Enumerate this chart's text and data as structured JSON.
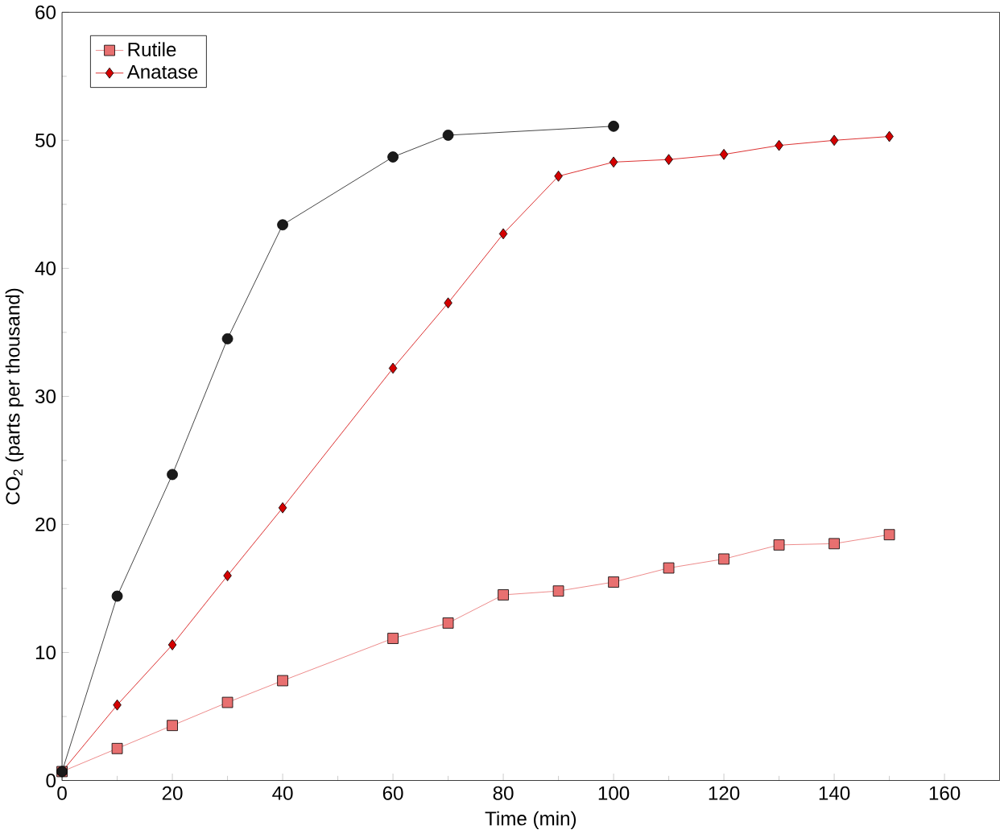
{
  "chart_data": {
    "type": "line",
    "xlabel": "Time (min)",
    "ylabel": "CO$_{2}$ (parts per thousand)",
    "xlim": [
      0,
      170
    ],
    "ylim": [
      0,
      60
    ],
    "xticks": [
      0,
      20,
      40,
      60,
      80,
      100,
      120,
      140,
      160
    ],
    "yticks": [
      0,
      10,
      20,
      30,
      40,
      50,
      60
    ],
    "legend": "top left",
    "grid": false,
    "series": [
      {
        "name": "Rutile",
        "color": "#e87070",
        "marker": "square",
        "x": [
          0,
          10,
          20,
          30,
          40,
          60,
          70,
          80,
          90,
          100,
          110,
          120,
          130,
          140,
          150
        ],
        "values": [
          0.7,
          2.5,
          4.3,
          6.1,
          7.8,
          11.1,
          12.3,
          14.5,
          14.8,
          15.5,
          16.6,
          17.3,
          18.4,
          18.5,
          19.2
        ]
      },
      {
        "name": "Anatase",
        "color": "#d40000",
        "marker": "diamond",
        "x": [
          0,
          10,
          20,
          30,
          40,
          60,
          70,
          80,
          90,
          100,
          110,
          120,
          130,
          140,
          150
        ],
        "values": [
          0.7,
          5.9,
          10.6,
          16,
          21.3,
          32.2,
          37.3,
          42.7,
          47.2,
          48.3,
          48.5,
          48.9,
          49.6,
          50,
          50.3
        ]
      },
      {
        "color": "#1a1a1a",
        "marker": "circle",
        "x": [
          0,
          10,
          20,
          30,
          40,
          60,
          70,
          100
        ],
        "values": [
          0.7,
          14.4,
          23.9,
          34.5,
          43.4,
          48.7,
          50.4,
          51.1
        ]
      }
    ]
  }
}
